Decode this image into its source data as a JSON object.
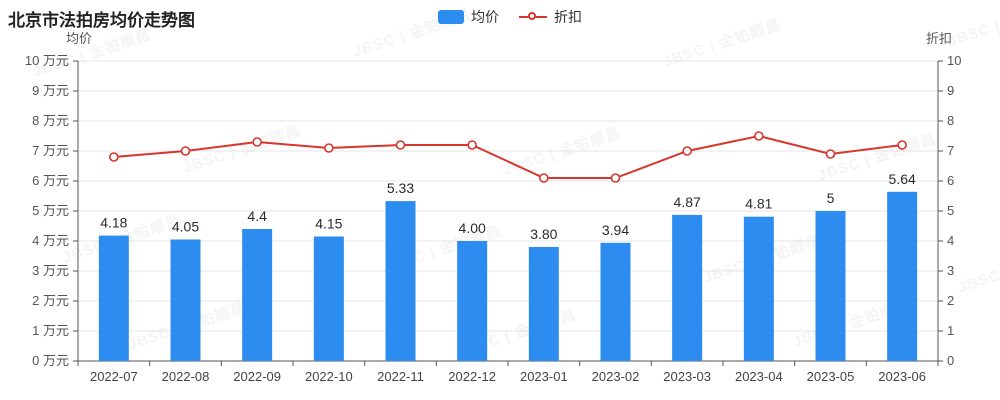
{
  "title": "北京市法拍房均价走势图",
  "legend": {
    "price_label": "均价",
    "discount_label": "折扣"
  },
  "watermark": {
    "text": "JBSC | 金铂顺昌"
  },
  "colors": {
    "bar_blue": "#2d8cf0",
    "line_red": "#d7362d",
    "grid": "#e5e5e5",
    "axis": "#555555"
  },
  "chart_data": {
    "type": "bar",
    "title": "北京市法拍房均价走势图",
    "categories": [
      "2022-07",
      "2022-08",
      "2022-09",
      "2022-10",
      "2022-11",
      "2022-12",
      "2023-01",
      "2023-02",
      "2023-03",
      "2023-04",
      "2023-05",
      "2023-06"
    ],
    "series": [
      {
        "name": "均价",
        "type": "bar",
        "axis": "left",
        "color": "#2d8cf0",
        "values": [
          4.18,
          4.05,
          4.4,
          4.15,
          5.33,
          4.0,
          3.8,
          3.94,
          4.87,
          4.81,
          5,
          5.64
        ],
        "labels": [
          "4.18",
          "4.05",
          "4.4",
          "4.15",
          "5.33",
          "4.00",
          "3.80",
          "3.94",
          "4.87",
          "4.81",
          "5",
          "5.64"
        ]
      },
      {
        "name": "折扣",
        "type": "line",
        "axis": "right",
        "color": "#d7362d",
        "values": [
          6.8,
          7.0,
          7.3,
          7.1,
          7.2,
          7.2,
          6.1,
          6.1,
          7.0,
          7.5,
          6.9,
          7.2
        ]
      }
    ],
    "left_axis": {
      "name": "均价",
      "min": 0,
      "max": 10,
      "step": 1,
      "tick_suffix": " 万元"
    },
    "right_axis": {
      "name": "折扣",
      "min": 0,
      "max": 10,
      "step": 1
    },
    "grid": true,
    "legend_position": "top-center"
  }
}
